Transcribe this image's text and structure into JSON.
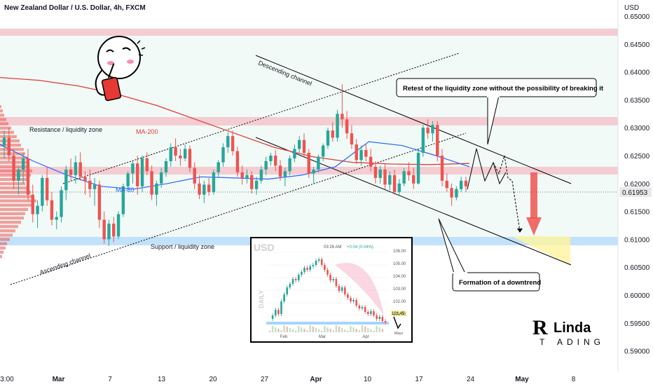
{
  "header": {
    "symbol_title": "New Zealand Dollar / U.S. Dollar, 4h, FXCM",
    "price_axis_label": "USD"
  },
  "current_price": {
    "value": 0.61953,
    "label": "0.61953"
  },
  "annotations": {
    "descending_channel": "Descending channel",
    "ascending_channel": "Ascending channel",
    "resistance_zone": "Resistance / liquidity zone",
    "support_zone": "Support / liquidity zone",
    "ma200": "MA-200",
    "ma50": "MA-50",
    "callout_retest": "Retest of the liquidity zone without the possibility of breaking it",
    "callout_downtrend": "Formation of a downtrend"
  },
  "inset": {
    "title": "USD",
    "time": "03:26 AM",
    "change": "+0.04 (0.04%)",
    "side_label": "DAILY",
    "last_label": "101.45",
    "y_ticks": [
      "106.00",
      "105.00",
      "104.00",
      "103.00",
      "102.00",
      "101.00"
    ],
    "x_ticks": [
      "Feb",
      "Mar",
      "Apr"
    ],
    "bottom_right": "Mayo"
  },
  "logo": {
    "text_line1": "Linda",
    "text_line2_a": "T",
    "text_line2_b": "ADING"
  },
  "colors": {
    "up": "#26a69a",
    "down": "#ef5350",
    "ma200": "#e53935",
    "ma50": "#2962ff",
    "resistance_zone": "#f4c2c8",
    "support_zone": "#bbdefb",
    "target_zone": "#fff59d",
    "red_arrow": "#ef5350",
    "volume_profile": "#ef5350"
  },
  "chart_data": {
    "type": "candlestick",
    "title": "New Zealand Dollar / U.S. Dollar, 4h, FXCM",
    "ylim": [
      0.5863,
      0.6529
    ],
    "y_ticks": [
      "0.65000",
      "0.64500",
      "0.64000",
      "0.63500",
      "0.63000",
      "0.62500",
      "0.62000",
      "0.61500",
      "0.61000",
      "0.60500",
      "0.60000",
      "0.59500",
      "0.59000"
    ],
    "x_ticks": [
      "3:00",
      "Mar",
      "7",
      "13",
      "20",
      "27",
      "Apr",
      "10",
      "17",
      "24",
      "May",
      "8"
    ],
    "zones": {
      "resistance": [
        0.6315,
        0.6328
      ],
      "support": [
        0.6103,
        0.6116
      ],
      "top_band": [
        0.6486,
        0.6496
      ],
      "mid_band": [
        0.6228,
        0.6239
      ]
    },
    "series": [
      {
        "name": "MA-200",
        "values": [
          0.639,
          0.6385,
          0.6375,
          0.636,
          0.634,
          0.6315,
          0.629,
          0.6265,
          0.6248,
          0.6238,
          0.6235,
          0.6234,
          0.6236
        ]
      },
      {
        "name": "MA-50",
        "values": [
          0.627,
          0.624,
          0.6215,
          0.6195,
          0.619,
          0.62,
          0.6212,
          0.621,
          0.6208,
          0.6215,
          0.623,
          0.6275,
          0.6268,
          0.625,
          0.623
        ]
      }
    ],
    "candles": [
      [
        0.6268,
        0.6295,
        0.6245,
        0.6282
      ],
      [
        0.6282,
        0.63,
        0.624,
        0.625
      ],
      [
        0.625,
        0.6262,
        0.619,
        0.6205
      ],
      [
        0.6205,
        0.623,
        0.618,
        0.6225
      ],
      [
        0.6225,
        0.6255,
        0.62,
        0.6245
      ],
      [
        0.6245,
        0.6262,
        0.617,
        0.618
      ],
      [
        0.618,
        0.6198,
        0.613,
        0.6145
      ],
      [
        0.6145,
        0.617,
        0.612,
        0.616
      ],
      [
        0.616,
        0.6215,
        0.615,
        0.621
      ],
      [
        0.621,
        0.623,
        0.616,
        0.617
      ],
      [
        0.617,
        0.6185,
        0.6125,
        0.6135
      ],
      [
        0.6135,
        0.615,
        0.6118,
        0.614
      ],
      [
        0.614,
        0.6195,
        0.613,
        0.6188
      ],
      [
        0.6188,
        0.6232,
        0.617,
        0.6225
      ],
      [
        0.6225,
        0.6245,
        0.6205,
        0.6215
      ],
      [
        0.6215,
        0.625,
        0.62,
        0.6238
      ],
      [
        0.6238,
        0.6256,
        0.6205,
        0.6212
      ],
      [
        0.6212,
        0.6222,
        0.618,
        0.6205
      ],
      [
        0.6205,
        0.6225,
        0.6175,
        0.619
      ],
      [
        0.619,
        0.621,
        0.616,
        0.6198
      ],
      [
        0.6198,
        0.6205,
        0.612,
        0.6135
      ],
      [
        0.6135,
        0.615,
        0.6092,
        0.61
      ],
      [
        0.61,
        0.6135,
        0.6088,
        0.6128
      ],
      [
        0.6128,
        0.614,
        0.6095,
        0.6105
      ],
      [
        0.6105,
        0.615,
        0.61,
        0.6145
      ],
      [
        0.6145,
        0.62,
        0.614,
        0.6195
      ],
      [
        0.6195,
        0.6222,
        0.6185,
        0.6218
      ],
      [
        0.6218,
        0.624,
        0.62,
        0.6236
      ],
      [
        0.6236,
        0.625,
        0.618,
        0.6195
      ],
      [
        0.6195,
        0.625,
        0.6185,
        0.6245
      ],
      [
        0.6245,
        0.6256,
        0.6215,
        0.6222
      ],
      [
        0.6222,
        0.6232,
        0.617,
        0.618
      ],
      [
        0.618,
        0.6205,
        0.616,
        0.62
      ],
      [
        0.62,
        0.6228,
        0.6192,
        0.622
      ],
      [
        0.622,
        0.6245,
        0.6212,
        0.624
      ],
      [
        0.624,
        0.6272,
        0.623,
        0.6265
      ],
      [
        0.6265,
        0.6281,
        0.624,
        0.625
      ],
      [
        0.625,
        0.6262,
        0.6232,
        0.6245
      ],
      [
        0.6245,
        0.627,
        0.624,
        0.6262
      ],
      [
        0.6262,
        0.6268,
        0.622,
        0.6228
      ],
      [
        0.6228,
        0.6238,
        0.619,
        0.62
      ],
      [
        0.62,
        0.6215,
        0.6172,
        0.618
      ],
      [
        0.618,
        0.6205,
        0.6165,
        0.6198
      ],
      [
        0.6198,
        0.621,
        0.6178,
        0.6185
      ],
      [
        0.6185,
        0.6225,
        0.618,
        0.622
      ],
      [
        0.622,
        0.6242,
        0.6212,
        0.6238
      ],
      [
        0.6238,
        0.6272,
        0.623,
        0.6265
      ],
      [
        0.6265,
        0.6292,
        0.6255,
        0.6285
      ],
      [
        0.6285,
        0.6295,
        0.625,
        0.6258
      ],
      [
        0.6258,
        0.6266,
        0.6212,
        0.622
      ],
      [
        0.622,
        0.6232,
        0.6198,
        0.621
      ],
      [
        0.621,
        0.6225,
        0.62,
        0.6215
      ],
      [
        0.6215,
        0.6222,
        0.6182,
        0.619
      ],
      [
        0.619,
        0.6212,
        0.618,
        0.6205
      ],
      [
        0.6205,
        0.6232,
        0.62,
        0.6225
      ],
      [
        0.6225,
        0.6248,
        0.6215,
        0.624
      ],
      [
        0.624,
        0.6255,
        0.6232,
        0.625
      ],
      [
        0.625,
        0.626,
        0.6222,
        0.6232
      ],
      [
        0.6232,
        0.6242,
        0.6205,
        0.6212
      ],
      [
        0.6212,
        0.6228,
        0.6195,
        0.6222
      ],
      [
        0.6222,
        0.625,
        0.6215,
        0.6245
      ],
      [
        0.6245,
        0.627,
        0.6238,
        0.6262
      ],
      [
        0.6262,
        0.6285,
        0.6255,
        0.6278
      ],
      [
        0.6278,
        0.629,
        0.6248,
        0.6255
      ],
      [
        0.6255,
        0.6262,
        0.621,
        0.6218
      ],
      [
        0.6218,
        0.623,
        0.62,
        0.6225
      ],
      [
        0.6225,
        0.6252,
        0.622,
        0.6248
      ],
      [
        0.6248,
        0.6272,
        0.624,
        0.6268
      ],
      [
        0.6268,
        0.63,
        0.6262,
        0.6295
      ],
      [
        0.6295,
        0.631,
        0.6275,
        0.6282
      ],
      [
        0.6282,
        0.6332,
        0.6275,
        0.6325
      ],
      [
        0.6325,
        0.6378,
        0.63,
        0.6315
      ],
      [
        0.6315,
        0.633,
        0.628,
        0.629
      ],
      [
        0.629,
        0.6305,
        0.6262,
        0.627
      ],
      [
        0.627,
        0.628,
        0.6235,
        0.6242
      ],
      [
        0.6242,
        0.6268,
        0.6232,
        0.626
      ],
      [
        0.626,
        0.6272,
        0.624,
        0.6248
      ],
      [
        0.6248,
        0.6262,
        0.6222,
        0.623
      ],
      [
        0.623,
        0.624,
        0.62,
        0.621
      ],
      [
        0.621,
        0.6232,
        0.62,
        0.6225
      ],
      [
        0.6225,
        0.6235,
        0.619,
        0.6198
      ],
      [
        0.6198,
        0.6222,
        0.6188,
        0.6215
      ],
      [
        0.6215,
        0.6225,
        0.618,
        0.6185
      ],
      [
        0.6185,
        0.6208,
        0.618,
        0.62
      ],
      [
        0.62,
        0.6228,
        0.6195,
        0.6222
      ],
      [
        0.6222,
        0.6238,
        0.6205,
        0.6215
      ],
      [
        0.6215,
        0.6228,
        0.619,
        0.62
      ],
      [
        0.62,
        0.6262,
        0.6198,
        0.6255
      ],
      [
        0.6255,
        0.6305,
        0.6248,
        0.63
      ],
      [
        0.63,
        0.6315,
        0.628,
        0.629
      ],
      [
        0.629,
        0.6312,
        0.6275,
        0.6305
      ],
      [
        0.6305,
        0.6312,
        0.624,
        0.625
      ],
      [
        0.625,
        0.6262,
        0.6195,
        0.6205
      ],
      [
        0.6205,
        0.6218,
        0.6185,
        0.6192
      ],
      [
        0.6192,
        0.62,
        0.616,
        0.6175
      ],
      [
        0.6175,
        0.6195,
        0.617,
        0.619
      ],
      [
        0.619,
        0.6212,
        0.6185,
        0.6205
      ],
      [
        0.6205,
        0.6212,
        0.6185,
        0.6195
      ]
    ]
  }
}
